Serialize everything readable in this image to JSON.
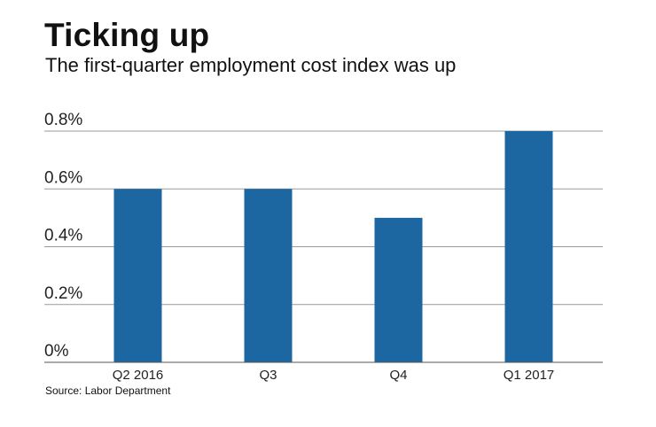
{
  "title": "Ticking up",
  "subtitle": "The first-quarter employment cost index was up",
  "source": "Source: Labor Department",
  "colors": {
    "bar": "#1c66a1",
    "grid": "#9a9a9a",
    "axis": "#555555"
  },
  "chart_data": {
    "type": "bar",
    "categories": [
      "Q2 2016",
      "Q3",
      "Q4",
      "Q1 2017"
    ],
    "values": [
      0.6,
      0.6,
      0.5,
      0.8
    ],
    "ylim": [
      0,
      0.8
    ],
    "yticks": [
      0,
      0.2,
      0.4,
      0.6,
      0.8
    ],
    "ytick_labels": [
      "0%",
      "0.2%",
      "0.4%",
      "0.6%",
      "0.8%"
    ],
    "grid": true,
    "legend": false,
    "title": "Ticking up",
    "xlabel": "",
    "ylabel": ""
  }
}
